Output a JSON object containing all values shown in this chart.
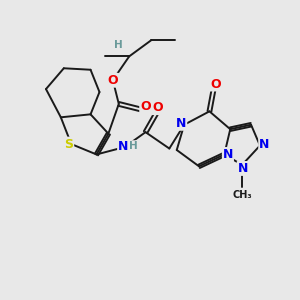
{
  "bg_color": "#e8e8e8",
  "atom_colors": {
    "C": "#1a1a1a",
    "H": "#6a9a9a",
    "N": "#0000ee",
    "O": "#ee0000",
    "S": "#cccc00"
  },
  "bond_color": "#1a1a1a",
  "bond_lw": 1.4,
  "font_size_atom": 9.0,
  "font_size_small": 7.5
}
